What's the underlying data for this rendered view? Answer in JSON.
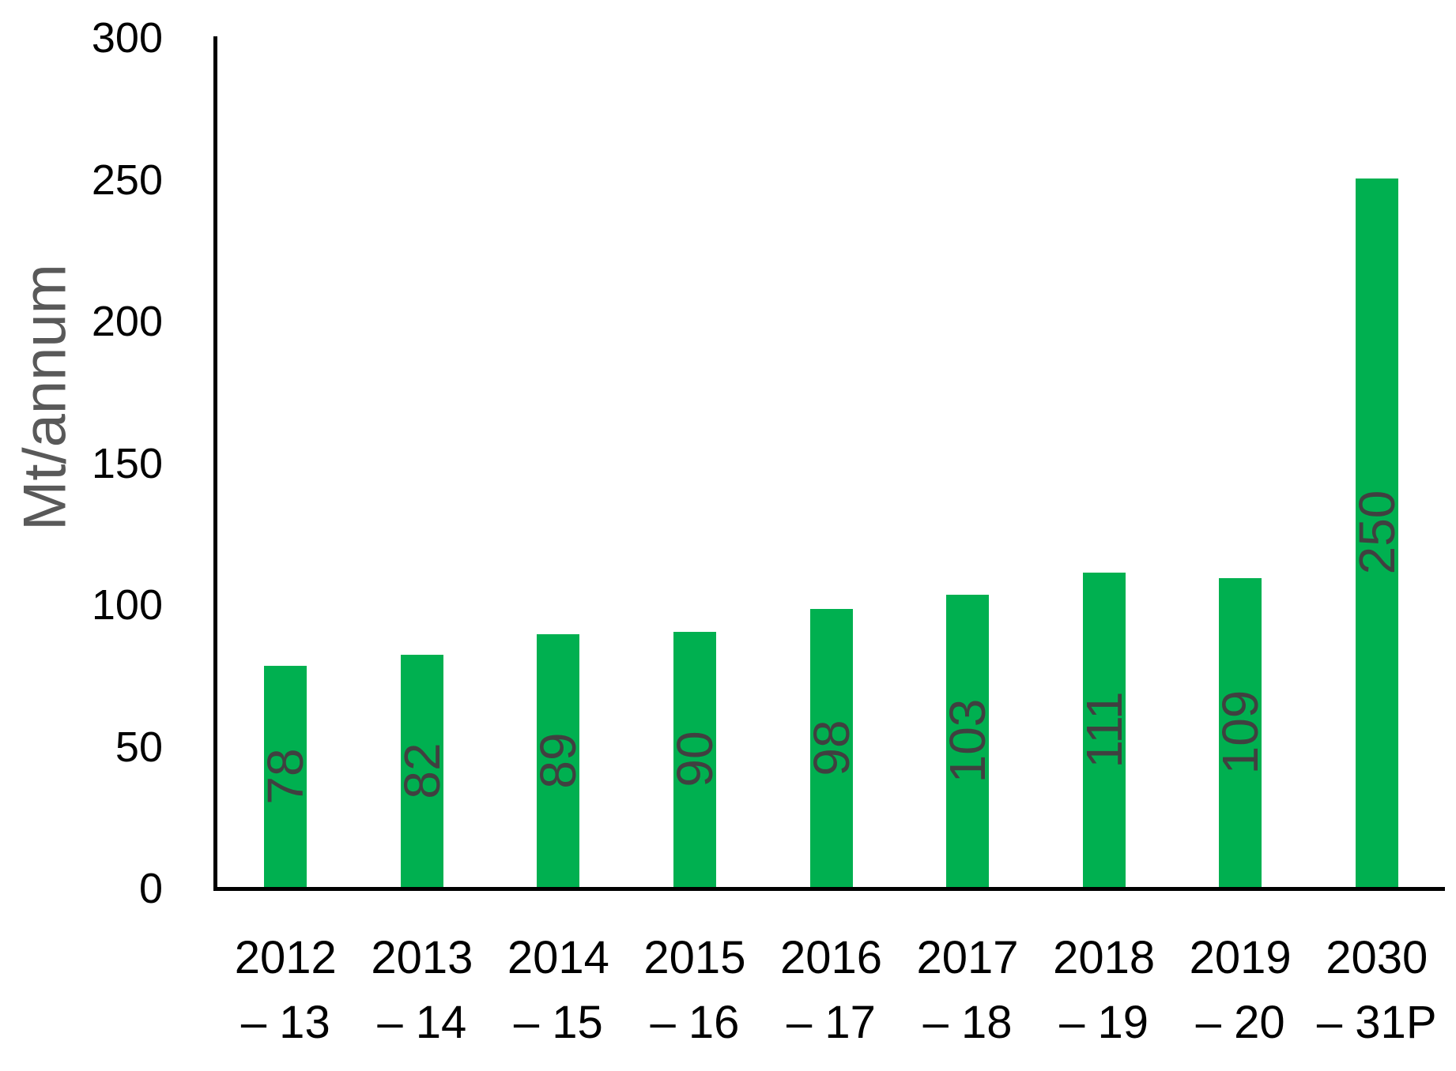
{
  "chart_data": {
    "type": "bar",
    "title": "",
    "xlabel": "",
    "ylabel": "Mt/annum",
    "categories": [
      "2012 – 13",
      "2013 – 14",
      "2014 – 15",
      "2015 – 16",
      "2016 – 17",
      "2017 – 18",
      "2018 – 19",
      "2019 – 20",
      "2030 – 31P"
    ],
    "category_lines": [
      [
        "2012",
        "– 13"
      ],
      [
        "2013",
        "– 14"
      ],
      [
        "2014",
        "– 15"
      ],
      [
        "2015",
        "– 16"
      ],
      [
        "2016",
        "– 17"
      ],
      [
        "2017",
        "– 18"
      ],
      [
        "2018",
        "– 19"
      ],
      [
        "2019",
        "– 20"
      ],
      [
        "2030",
        "– 31P"
      ]
    ],
    "values": [
      78,
      82,
      89,
      90,
      98,
      103,
      111,
      109,
      250
    ],
    "data_labels": [
      "78",
      "82",
      "89",
      "90",
      "98",
      "103",
      "111",
      "109",
      "250"
    ],
    "y_ticks": [
      0,
      50,
      100,
      150,
      200,
      250,
      300
    ],
    "ylim": [
      0,
      300
    ],
    "grid": false,
    "legend_position": "none",
    "data_label_position": "inside-center-rotated",
    "colors": {
      "bar": "#00B050",
      "bar_label": "#404040",
      "axis_line": "#000000",
      "tick_label": "#000000",
      "axis_title": "#595959",
      "background": "#FFFFFF"
    }
  }
}
